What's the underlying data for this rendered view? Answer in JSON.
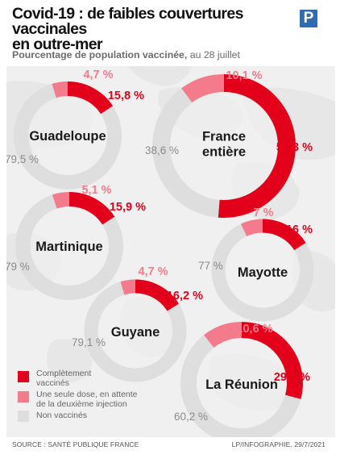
{
  "header": {
    "title_line1": "Covid-19 : de faibles couvertures vaccinales",
    "title_line2": "en outre-mer",
    "subtitle_bold": "Pourcentage de population vaccinée,",
    "subtitle_rest": " au 28 juillet",
    "logo_letter": "P"
  },
  "colors": {
    "complete": "#e3001b",
    "partial": "#f47b8c",
    "unvaccinated": "#dedede"
  },
  "chart_data": {
    "type": "pie",
    "subtype": "donut-multiples",
    "legend": [
      {
        "key": "complete",
        "lines": [
          "Complètement",
          "vaccinés"
        ]
      },
      {
        "key": "partial",
        "lines": [
          "Une seule dose, en attente",
          "de la deuxième injection"
        ]
      },
      {
        "key": "unvaccinated",
        "lines": [
          "Non vaccinés"
        ]
      }
    ],
    "regions": [
      {
        "name_lines": [
          "Guadeloupe"
        ],
        "complete": 15.8,
        "partial": 4.7,
        "unvaccinated": 79.5,
        "labels": {
          "complete": "15,8 %",
          "partial": "4,7 %",
          "unvaccinated": "79,5 %"
        }
      },
      {
        "name_lines": [
          "France",
          "entière"
        ],
        "complete": 51.3,
        "partial": 10.1,
        "unvaccinated": 38.6,
        "labels": {
          "complete": "51,3 %",
          "partial": "10,1 %",
          "unvaccinated": "38,6 %"
        }
      },
      {
        "name_lines": [
          "Martinique"
        ],
        "complete": 15.9,
        "partial": 5.1,
        "unvaccinated": 79,
        "labels": {
          "complete": "15,9 %",
          "partial": "5,1 %",
          "unvaccinated": "79 %"
        }
      },
      {
        "name_lines": [
          "Mayotte"
        ],
        "complete": 16,
        "partial": 7,
        "unvaccinated": 77,
        "labels": {
          "complete": "16 %",
          "partial": "7 %",
          "unvaccinated": "77 %"
        }
      },
      {
        "name_lines": [
          "Guyane"
        ],
        "complete": 16.2,
        "partial": 4.7,
        "unvaccinated": 79.1,
        "labels": {
          "complete": "16,2 %",
          "partial": "4,7 %",
          "unvaccinated": "79,1 %"
        }
      },
      {
        "name_lines": [
          "La Réunion"
        ],
        "complete": 29.2,
        "partial": 10.6,
        "unvaccinated": 60.2,
        "labels": {
          "complete": "29,2 %",
          "partial": "10,6 %",
          "unvaccinated": "60,2 %"
        }
      }
    ]
  },
  "footer": {
    "source": "SOURCE : SANTÉ PUBLIQUE FRANCE",
    "credit": "LP/INFOGRAPHIE.  29/7/2021"
  }
}
